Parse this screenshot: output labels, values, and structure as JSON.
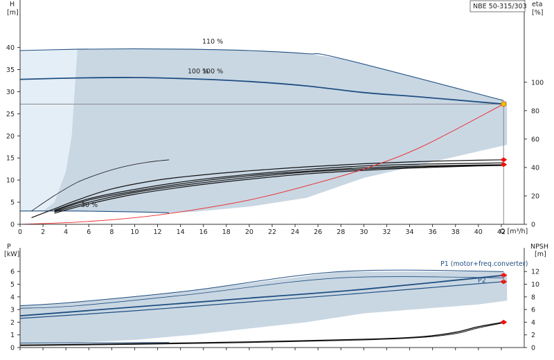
{
  "colors": {
    "envelope": "#c9d7e3",
    "envelope_light": "#e4eef7",
    "curve_blue": "#1f4e80",
    "curve_black": "#111111",
    "system_red": "#ee2222",
    "op_point": "#f2c200",
    "marker_red": "#ee1111",
    "guide_gray": "#888888"
  },
  "chart_data": [
    {
      "id": "head",
      "type": "line",
      "title": "NBE 50-315/303",
      "ylabel_top": "H",
      "ylabel_unit": "[m]",
      "y2label_top": "eta",
      "y2label_unit": "[%]",
      "xlabel": "Q [m³/h]",
      "xlim": [
        0,
        44
      ],
      "ylim": [
        0,
        45
      ],
      "y2lim": [
        0,
        140
      ],
      "xticks": [
        0,
        2,
        4,
        6,
        8,
        10,
        12,
        14,
        16,
        18,
        20,
        22,
        24,
        26,
        28,
        30,
        32,
        34,
        36,
        38,
        40,
        42
      ],
      "yticks": [
        0,
        5,
        10,
        15,
        20,
        25,
        30,
        35,
        40
      ],
      "y2ticks": [
        0,
        20,
        40,
        60,
        80,
        100
      ],
      "grid": false,
      "annotations": [
        "110 %",
        "100 %",
        "100 %",
        "30 %"
      ],
      "operating_point": {
        "q": 42.2,
        "h": 27.2
      },
      "series": [
        {
          "role": "envelope_light",
          "points": [
            [
              0,
              3
            ],
            [
              0,
              39.3
            ],
            [
              5,
              39.6
            ],
            [
              4.5,
              20
            ],
            [
              4,
              12
            ],
            [
              3,
              5
            ],
            [
              2,
              3
            ]
          ]
        },
        {
          "role": "envelope",
          "points": [
            [
              5,
              39.6
            ],
            [
              10,
              39.7
            ],
            [
              15,
              39.6
            ],
            [
              20,
              39.3
            ],
            [
              25,
              38.6
            ],
            [
              28,
              37.5
            ],
            [
              42.2,
              28
            ],
            [
              42.5,
              27.8
            ],
            [
              42.5,
              18
            ],
            [
              40,
              16.5
            ],
            [
              35,
              13.5
            ],
            [
              30,
              10.5
            ],
            [
              25,
              6
            ],
            [
              20,
              4
            ],
            [
              15,
              2.8
            ],
            [
              13,
              2.6
            ],
            [
              5,
              3
            ],
            [
              2,
              3
            ],
            [
              3,
              5
            ],
            [
              4,
              12
            ],
            [
              4.5,
              20
            ]
          ]
        },
        {
          "role": "curve_110",
          "points": [
            [
              0,
              39.3
            ],
            [
              5,
              39.6
            ],
            [
              10,
              39.7
            ],
            [
              15,
              39.6
            ],
            [
              20,
              39.3
            ],
            [
              25,
              38.6
            ],
            [
              28,
              37.5
            ],
            [
              42.2,
              28
            ]
          ]
        },
        {
          "role": "curve_100",
          "points": [
            [
              0,
              32.8
            ],
            [
              5,
              33.1
            ],
            [
              10,
              33.2
            ],
            [
              15,
              32.9
            ],
            [
              20,
              32.3
            ],
            [
              25,
              31.3
            ],
            [
              30,
              29.8
            ],
            [
              35,
              28.8
            ],
            [
              42.2,
              27.2
            ]
          ]
        },
        {
          "role": "curve_30",
          "points": [
            [
              0,
              3
            ],
            [
              5,
              3
            ],
            [
              10,
              2.8
            ],
            [
              13,
              2.6
            ]
          ]
        },
        {
          "role": "eta_small",
          "points": [
            [
              1,
              3
            ],
            [
              3,
              6.5
            ],
            [
              5,
              9.5
            ],
            [
              7,
              11.5
            ],
            [
              9,
              13
            ],
            [
              11,
              14
            ],
            [
              13,
              14.6
            ]
          ]
        },
        {
          "role": "eta_a",
          "points": [
            [
              1,
              1.5
            ],
            [
              3,
              3.5
            ],
            [
              5,
              5.5
            ],
            [
              8,
              8
            ],
            [
              12,
              10
            ],
            [
              16,
              11.2
            ],
            [
              20,
              12.1
            ],
            [
              25,
              13
            ],
            [
              30,
              13.7
            ],
            [
              35,
              14.2
            ],
            [
              40,
              14.5
            ],
            [
              42.2,
              14.6
            ]
          ]
        },
        {
          "role": "eta_b",
          "points": [
            [
              3,
              3
            ],
            [
              6,
              5.5
            ],
            [
              10,
              7.5
            ],
            [
              15,
              9.5
            ],
            [
              20,
              11
            ],
            [
              25,
              12
            ],
            [
              30,
              12.8
            ],
            [
              35,
              13.2
            ],
            [
              40,
              13.4
            ],
            [
              42.2,
              13.5
            ]
          ]
        },
        {
          "role": "eta_c",
          "points": [
            [
              3,
              2.8
            ],
            [
              6,
              5
            ],
            [
              10,
              7.2
            ],
            [
              15,
              9.1
            ],
            [
              20,
              10.6
            ],
            [
              25,
              11.8
            ],
            [
              30,
              12.5
            ],
            [
              35,
              13
            ],
            [
              40,
              13.3
            ],
            [
              42.2,
              13.4
            ]
          ]
        },
        {
          "role": "eta_d",
          "points": [
            [
              3,
              2.5
            ],
            [
              6,
              4.6
            ],
            [
              10,
              6.8
            ],
            [
              15,
              8.7
            ],
            [
              20,
              10.2
            ],
            [
              25,
              11.4
            ],
            [
              30,
              12.2
            ],
            [
              35,
              12.8
            ],
            [
              40,
              13.2
            ],
            [
              42.2,
              13.3
            ]
          ]
        },
        {
          "role": "eta_e",
          "points": [
            [
              3,
              3.2
            ],
            [
              6,
              5.8
            ],
            [
              10,
              7.9
            ],
            [
              15,
              9.9
            ],
            [
              20,
              11.3
            ],
            [
              25,
              12.4
            ],
            [
              30,
              13.2
            ],
            [
              35,
              13.6
            ],
            [
              40,
              13.8
            ],
            [
              42.2,
              13.9
            ]
          ]
        },
        {
          "role": "system",
          "points": [
            [
              0,
              0
            ],
            [
              5,
              0.5
            ],
            [
              10,
              1.5
            ],
            [
              14,
              2.8
            ],
            [
              20,
              5.5
            ],
            [
              25,
              8.7
            ],
            [
              30,
              12.5
            ],
            [
              35,
              17.5
            ],
            [
              42.2,
              27.2
            ]
          ]
        }
      ],
      "markers_red": [
        [
          42.2,
          14.6
        ],
        [
          42.2,
          13.5
        ]
      ]
    },
    {
      "id": "power",
      "type": "line",
      "ylabel_top": "P",
      "ylabel_unit": "[kW]",
      "y2label_top": "NPSH",
      "y2label_unit": "[m]",
      "xlim": [
        0,
        44
      ],
      "ylim": [
        0,
        7
      ],
      "y2lim": [
        0,
        14
      ],
      "yticks": [
        0,
        1,
        2,
        3,
        4,
        5,
        6
      ],
      "y2ticks": [
        0,
        2,
        4,
        6,
        8,
        10,
        12
      ],
      "grid": false,
      "legend": [
        "P1 (motor+freq.converter)",
        "P2"
      ],
      "series": [
        {
          "role": "envelope",
          "points": [
            [
              0,
              3.3
            ],
            [
              5,
              3.6
            ],
            [
              15,
              4.5
            ],
            [
              28,
              6
            ],
            [
              42.2,
              6
            ],
            [
              42.5,
              5.8
            ],
            [
              42.5,
              3.7
            ],
            [
              40,
              3.4
            ],
            [
              30,
              2.7
            ],
            [
              25,
              2
            ],
            [
              20,
              1.5
            ],
            [
              15,
              1
            ],
            [
              10,
              0.6
            ],
            [
              5,
              0.4
            ],
            [
              0,
              0.3
            ]
          ]
        },
        {
          "role": "p_upper1",
          "points": [
            [
              0,
              3.3
            ],
            [
              5,
              3.6
            ],
            [
              15,
              4.5
            ],
            [
              28,
              6
            ],
            [
              42.2,
              6
            ]
          ]
        },
        {
          "role": "p_upper2",
          "points": [
            [
              0,
              3.1
            ],
            [
              5,
              3.3
            ],
            [
              15,
              4.2
            ],
            [
              28,
              5.5
            ],
            [
              42.2,
              5.5
            ]
          ]
        },
        {
          "role": "p1",
          "points": [
            [
              0,
              2.5
            ],
            [
              10,
              3.2
            ],
            [
              20,
              3.9
            ],
            [
              30,
              4.6
            ],
            [
              42.2,
              5.7
            ]
          ]
        },
        {
          "role": "p2",
          "points": [
            [
              0,
              2.3
            ],
            [
              10,
              2.9
            ],
            [
              20,
              3.6
            ],
            [
              30,
              4.3
            ],
            [
              42.2,
              5.2
            ]
          ]
        },
        {
          "role": "p_low",
          "points": [
            [
              0,
              0.35
            ],
            [
              13,
              0.4
            ]
          ]
        },
        {
          "role": "npsh_a",
          "points": [
            [
              0,
              0.4
            ],
            [
              10,
              0.6
            ],
            [
              20,
              0.9
            ],
            [
              30,
              1.3
            ],
            [
              35,
              1.7
            ],
            [
              38,
              2.4
            ],
            [
              40,
              3.3
            ],
            [
              42.2,
              4.0
            ]
          ]
        },
        {
          "role": "npsh_b",
          "points": [
            [
              0,
              0.3
            ],
            [
              10,
              0.5
            ],
            [
              20,
              0.8
            ],
            [
              30,
              1.2
            ],
            [
              35,
              1.6
            ],
            [
              38,
              2.2
            ],
            [
              40,
              3.1
            ],
            [
              42.2,
              3.9
            ]
          ]
        }
      ],
      "markers_red": [
        [
          42.2,
          5.7
        ],
        [
          42.2,
          5.2
        ],
        [
          42.2,
          4.0
        ]
      ]
    }
  ]
}
